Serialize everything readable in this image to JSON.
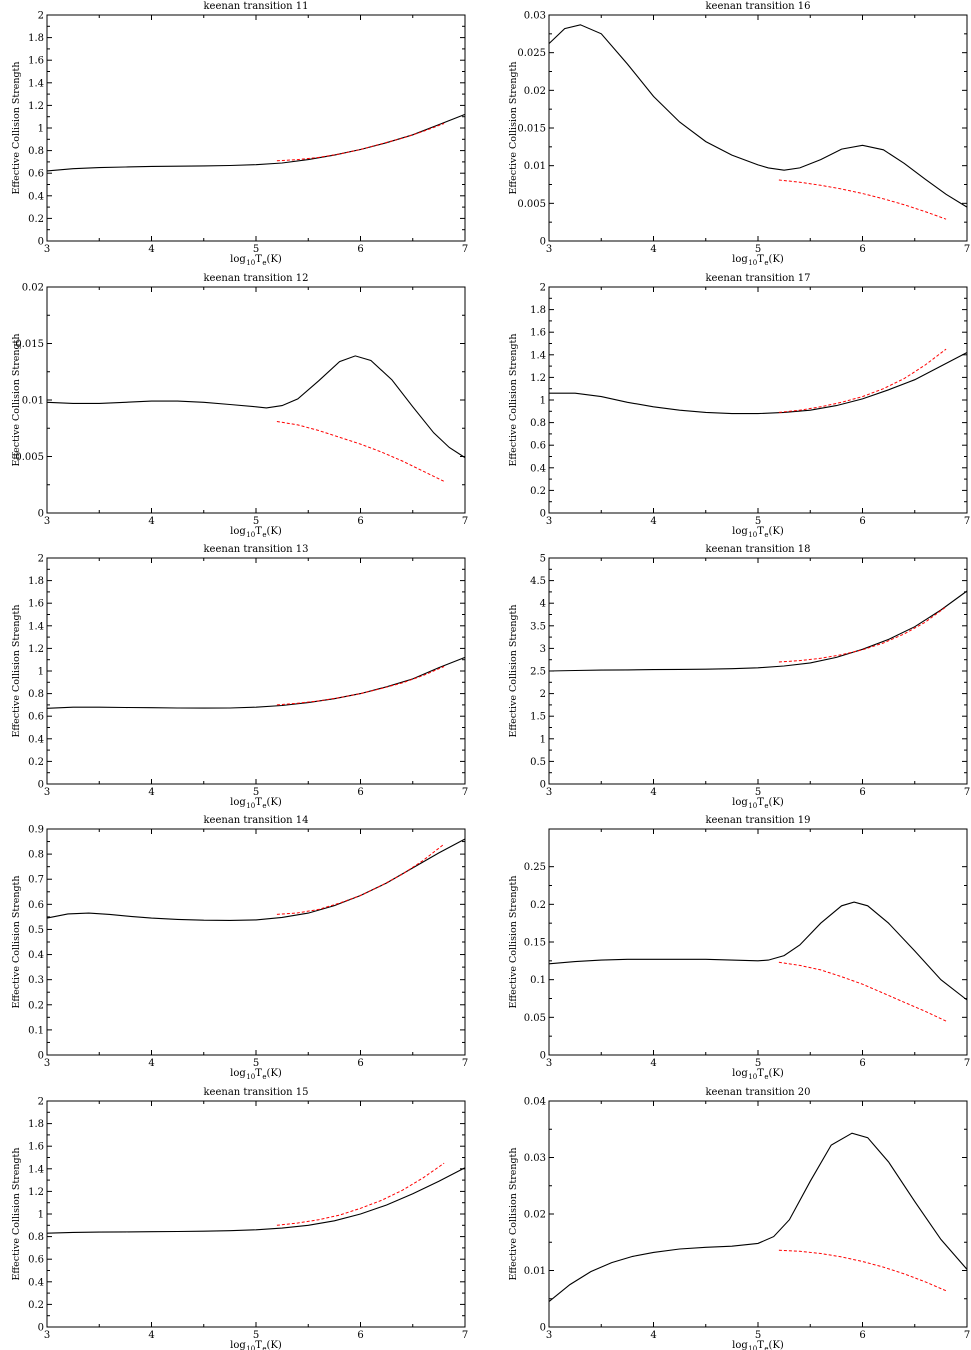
{
  "colors": {
    "calculated": "#000000",
    "reference": "#ff0000",
    "background": "#ffffff"
  },
  "chart_data": [
    {
      "type": "line",
      "title": "keenan transition 11",
      "xlabel": {
        "base": "log",
        "sub": "10",
        "T": "T",
        "esub": "e",
        "unit": "(K)"
      },
      "ylabel": "Effective Collision Strength",
      "xlim": [
        3,
        7
      ],
      "ylim": [
        0,
        2
      ],
      "xticks": [
        "3",
        "4",
        "5",
        "6",
        "7"
      ],
      "yticks": [
        "0",
        "0.2",
        "0.4",
        "0.6",
        "0.8",
        "1",
        "1.2",
        "1.4",
        "1.6",
        "1.8",
        "2"
      ],
      "series": [
        {
          "style": "solid",
          "x": [
            3,
            3.25,
            3.5,
            3.75,
            4,
            4.25,
            4.5,
            4.75,
            5,
            5.25,
            5.5,
            5.75,
            6,
            6.25,
            6.5,
            6.75,
            7
          ],
          "y": [
            0.62,
            0.64,
            0.65,
            0.655,
            0.66,
            0.662,
            0.665,
            0.668,
            0.675,
            0.69,
            0.72,
            0.76,
            0.81,
            0.87,
            0.94,
            1.03,
            1.12
          ]
        },
        {
          "style": "dashed",
          "x": [
            5.2,
            5.4,
            5.6,
            5.8,
            6,
            6.2,
            6.4,
            6.6,
            6.8
          ],
          "y": [
            0.71,
            0.72,
            0.74,
            0.77,
            0.81,
            0.86,
            0.91,
            0.97,
            1.04
          ]
        }
      ]
    },
    {
      "type": "line",
      "title": "keenan transition 16",
      "xlabel": {
        "base": "log",
        "sub": "10",
        "T": "T",
        "esub": "e",
        "unit": "(K)"
      },
      "ylabel": "Effective Collision Strength",
      "xlim": [
        3,
        7
      ],
      "ylim": [
        0,
        0.03
      ],
      "xticks": [
        "3",
        "4",
        "5",
        "6",
        "7"
      ],
      "yticks": [
        "0",
        "0.005",
        "0.01",
        "0.015",
        "0.02",
        "0.025",
        "0.03"
      ],
      "series": [
        {
          "style": "solid",
          "x": [
            3,
            3.15,
            3.3,
            3.5,
            3.75,
            4,
            4.25,
            4.5,
            4.75,
            5,
            5.1,
            5.25,
            5.4,
            5.6,
            5.8,
            6,
            6.2,
            6.4,
            6.6,
            6.8,
            7
          ],
          "y": [
            0.0262,
            0.0282,
            0.0287,
            0.0275,
            0.0235,
            0.0192,
            0.0158,
            0.0132,
            0.0114,
            0.0101,
            0.0097,
            0.0094,
            0.0097,
            0.0108,
            0.0122,
            0.0127,
            0.0121,
            0.0103,
            0.0082,
            0.0062,
            0.0045
          ]
        },
        {
          "style": "dashed",
          "x": [
            5.2,
            5.4,
            5.6,
            5.8,
            6,
            6.2,
            6.4,
            6.6,
            6.8
          ],
          "y": [
            0.0081,
            0.0078,
            0.0074,
            0.0069,
            0.0063,
            0.0056,
            0.0048,
            0.0039,
            0.0029
          ]
        }
      ]
    },
    {
      "type": "line",
      "title": "keenan transition 12",
      "xlabel": {
        "base": "log",
        "sub": "10",
        "T": "T",
        "esub": "e",
        "unit": "(K)"
      },
      "ylabel": "Effective Collision Strength",
      "xlim": [
        3,
        7
      ],
      "ylim": [
        0,
        0.02
      ],
      "xticks": [
        "3",
        "4",
        "5",
        "6",
        "7"
      ],
      "yticks": [
        "0",
        "0.005",
        "0.01",
        "0.015",
        "0.02"
      ],
      "series": [
        {
          "style": "solid",
          "x": [
            3,
            3.25,
            3.5,
            3.75,
            4,
            4.25,
            4.5,
            4.75,
            5,
            5.1,
            5.25,
            5.4,
            5.6,
            5.8,
            5.95,
            6.1,
            6.3,
            6.5,
            6.7,
            6.85,
            7
          ],
          "y": [
            0.0098,
            0.0097,
            0.0097,
            0.0098,
            0.0099,
            0.0099,
            0.0098,
            0.0096,
            0.0094,
            0.0093,
            0.0095,
            0.0101,
            0.0117,
            0.0134,
            0.0139,
            0.0135,
            0.0118,
            0.0094,
            0.0071,
            0.0058,
            0.0049
          ]
        },
        {
          "style": "dashed",
          "x": [
            5.2,
            5.4,
            5.6,
            5.8,
            6,
            6.2,
            6.4,
            6.6,
            6.8
          ],
          "y": [
            0.0081,
            0.0078,
            0.0073,
            0.0067,
            0.0061,
            0.0054,
            0.0046,
            0.0037,
            0.0028
          ]
        }
      ]
    },
    {
      "type": "line",
      "title": "keenan transition 17",
      "xlabel": {
        "base": "log",
        "sub": "10",
        "T": "T",
        "esub": "e",
        "unit": "(K)"
      },
      "ylabel": "Effective Collision Strength",
      "xlim": [
        3,
        7
      ],
      "ylim": [
        0,
        2
      ],
      "xticks": [
        "3",
        "4",
        "5",
        "6",
        "7"
      ],
      "yticks": [
        "0",
        "0.2",
        "0.4",
        "0.6",
        "0.8",
        "1",
        "1.2",
        "1.4",
        "1.6",
        "1.8",
        "2"
      ],
      "series": [
        {
          "style": "solid",
          "x": [
            3,
            3.25,
            3.5,
            3.75,
            4,
            4.25,
            4.5,
            4.75,
            5,
            5.25,
            5.5,
            5.75,
            6,
            6.25,
            6.5,
            6.75,
            7
          ],
          "y": [
            1.06,
            1.06,
            1.03,
            0.98,
            0.94,
            0.91,
            0.89,
            0.88,
            0.88,
            0.89,
            0.91,
            0.95,
            1.01,
            1.09,
            1.18,
            1.3,
            1.42
          ]
        },
        {
          "style": "dashed",
          "x": [
            5.2,
            5.4,
            5.6,
            5.8,
            6,
            6.2,
            6.4,
            6.6,
            6.8
          ],
          "y": [
            0.89,
            0.91,
            0.94,
            0.98,
            1.03,
            1.1,
            1.19,
            1.31,
            1.45
          ]
        }
      ]
    },
    {
      "type": "line",
      "title": "keenan transition 13",
      "xlabel": {
        "base": "log",
        "sub": "10",
        "T": "T",
        "esub": "e",
        "unit": "(K)"
      },
      "ylabel": "Effective Collision Strength",
      "xlim": [
        3,
        7
      ],
      "ylim": [
        0,
        2
      ],
      "xticks": [
        "3",
        "4",
        "5",
        "6",
        "7"
      ],
      "yticks": [
        "0",
        "0.2",
        "0.4",
        "0.6",
        "0.8",
        "1",
        "1.2",
        "1.4",
        "1.6",
        "1.8",
        "2"
      ],
      "series": [
        {
          "style": "solid",
          "x": [
            3,
            3.25,
            3.5,
            3.75,
            4,
            4.25,
            4.5,
            4.75,
            5,
            5.25,
            5.5,
            5.75,
            6,
            6.25,
            6.5,
            6.75,
            7
          ],
          "y": [
            0.67,
            0.68,
            0.68,
            0.677,
            0.675,
            0.673,
            0.672,
            0.673,
            0.68,
            0.695,
            0.72,
            0.755,
            0.8,
            0.86,
            0.93,
            1.03,
            1.12
          ]
        },
        {
          "style": "dashed",
          "x": [
            5.2,
            5.4,
            5.6,
            5.8,
            6,
            6.2,
            6.4,
            6.6,
            6.8
          ],
          "y": [
            0.7,
            0.715,
            0.735,
            0.765,
            0.8,
            0.845,
            0.895,
            0.96,
            1.04
          ]
        }
      ]
    },
    {
      "type": "line",
      "title": "keenan transition 18",
      "xlabel": {
        "base": "log",
        "sub": "10",
        "T": "T",
        "esub": "e",
        "unit": "(K)"
      },
      "ylabel": "Effective Collision Strength",
      "xlim": [
        3,
        7
      ],
      "ylim": [
        0,
        5
      ],
      "xticks": [
        "3",
        "4",
        "5",
        "6",
        "7"
      ],
      "yticks": [
        "0",
        "0.5",
        "1",
        "1.5",
        "2",
        "2.5",
        "3",
        "3.5",
        "4",
        "4.5",
        "5"
      ],
      "series": [
        {
          "style": "solid",
          "x": [
            3,
            3.25,
            3.5,
            3.75,
            4,
            4.25,
            4.5,
            4.75,
            5,
            5.25,
            5.5,
            5.75,
            6,
            6.25,
            6.5,
            6.75,
            7
          ],
          "y": [
            2.5,
            2.51,
            2.52,
            2.525,
            2.53,
            2.535,
            2.54,
            2.55,
            2.57,
            2.61,
            2.68,
            2.8,
            2.98,
            3.2,
            3.48,
            3.85,
            4.27
          ]
        },
        {
          "style": "dashed",
          "x": [
            5.2,
            5.4,
            5.6,
            5.8,
            6,
            6.2,
            6.4,
            6.6,
            6.8
          ],
          "y": [
            2.7,
            2.73,
            2.78,
            2.86,
            2.97,
            3.12,
            3.32,
            3.58,
            3.92
          ]
        }
      ]
    },
    {
      "type": "line",
      "title": "keenan transition 14",
      "xlabel": {
        "base": "log",
        "sub": "10",
        "T": "T",
        "esub": "e",
        "unit": "(K)"
      },
      "ylabel": "Effective Collision Strength",
      "xlim": [
        3,
        7
      ],
      "ylim": [
        0,
        0.9
      ],
      "xticks": [
        "3",
        "4",
        "5",
        "6",
        "7"
      ],
      "yticks": [
        "0",
        "0.1",
        "0.2",
        "0.3",
        "0.4",
        "0.5",
        "0.6",
        "0.7",
        "0.8",
        "0.9"
      ],
      "series": [
        {
          "style": "solid",
          "x": [
            3,
            3.2,
            3.4,
            3.6,
            3.8,
            4,
            4.25,
            4.5,
            4.75,
            5,
            5.25,
            5.5,
            5.75,
            6,
            6.25,
            6.5,
            6.75,
            7
          ],
          "y": [
            0.545,
            0.562,
            0.565,
            0.56,
            0.552,
            0.545,
            0.54,
            0.537,
            0.536,
            0.538,
            0.548,
            0.565,
            0.595,
            0.635,
            0.685,
            0.745,
            0.805,
            0.86
          ]
        },
        {
          "style": "dashed",
          "x": [
            5.2,
            5.4,
            5.6,
            5.8,
            6,
            6.2,
            6.4,
            6.6,
            6.8
          ],
          "y": [
            0.56,
            0.566,
            0.58,
            0.605,
            0.635,
            0.675,
            0.72,
            0.775,
            0.84
          ]
        }
      ]
    },
    {
      "type": "line",
      "title": "keenan transition 19",
      "xlabel": {
        "base": "log",
        "sub": "10",
        "T": "T",
        "esub": "e",
        "unit": "(K)"
      },
      "ylabel": "Effective Collision Strength",
      "xlim": [
        3,
        7
      ],
      "ylim": [
        0,
        0.3
      ],
      "xticks": [
        "3",
        "4",
        "5",
        "6",
        "7"
      ],
      "yticks": [
        "0",
        "0.05",
        "0.1",
        "0.15",
        "0.2",
        "0.25"
      ],
      "series": [
        {
          "style": "solid",
          "x": [
            3,
            3.25,
            3.5,
            3.75,
            4,
            4.25,
            4.5,
            4.75,
            5,
            5.1,
            5.25,
            5.4,
            5.6,
            5.8,
            5.92,
            6.05,
            6.25,
            6.5,
            6.75,
            7
          ],
          "y": [
            0.121,
            0.124,
            0.126,
            0.127,
            0.127,
            0.127,
            0.127,
            0.126,
            0.125,
            0.126,
            0.132,
            0.146,
            0.175,
            0.198,
            0.203,
            0.198,
            0.175,
            0.138,
            0.1,
            0.073
          ]
        },
        {
          "style": "dashed",
          "x": [
            5.2,
            5.4,
            5.6,
            5.8,
            6,
            6.2,
            6.4,
            6.6,
            6.8
          ],
          "y": [
            0.123,
            0.119,
            0.113,
            0.104,
            0.094,
            0.082,
            0.07,
            0.058,
            0.045
          ]
        }
      ]
    },
    {
      "type": "line",
      "title": "keenan transition 15",
      "xlabel": {
        "base": "log",
        "sub": "10",
        "T": "T",
        "esub": "e",
        "unit": "(K)"
      },
      "ylabel": "Effective Collision Strength",
      "xlim": [
        3,
        7
      ],
      "ylim": [
        0,
        2
      ],
      "xticks": [
        "3",
        "4",
        "5",
        "6",
        "7"
      ],
      "yticks": [
        "0",
        "0.2",
        "0.4",
        "0.6",
        "0.8",
        "1",
        "1.2",
        "1.4",
        "1.6",
        "1.8",
        "2"
      ],
      "series": [
        {
          "style": "solid",
          "x": [
            3,
            3.25,
            3.5,
            3.75,
            4,
            4.25,
            4.5,
            4.75,
            5,
            5.25,
            5.5,
            5.75,
            6,
            6.25,
            6.5,
            6.75,
            7
          ],
          "y": [
            0.83,
            0.837,
            0.84,
            0.842,
            0.843,
            0.845,
            0.848,
            0.852,
            0.86,
            0.875,
            0.9,
            0.94,
            1.0,
            1.08,
            1.18,
            1.29,
            1.41
          ]
        },
        {
          "style": "dashed",
          "x": [
            5.2,
            5.4,
            5.6,
            5.8,
            6,
            6.2,
            6.4,
            6.6,
            6.8
          ],
          "y": [
            0.9,
            0.92,
            0.95,
            0.99,
            1.05,
            1.12,
            1.21,
            1.32,
            1.45
          ]
        }
      ]
    },
    {
      "type": "line",
      "title": "keenan transition 20",
      "xlabel": {
        "base": "log",
        "sub": "10",
        "T": "T",
        "esub": "e",
        "unit": "(K)"
      },
      "ylabel": "Effective Collision Strength",
      "xlim": [
        3,
        7
      ],
      "ylim": [
        0,
        0.04
      ],
      "xticks": [
        "3",
        "4",
        "5",
        "6",
        "7"
      ],
      "yticks": [
        "0",
        "0.01",
        "0.02",
        "0.03",
        "0.04"
      ],
      "series": [
        {
          "style": "solid",
          "x": [
            3,
            3.2,
            3.4,
            3.6,
            3.8,
            4,
            4.25,
            4.5,
            4.75,
            5,
            5.15,
            5.3,
            5.5,
            5.7,
            5.9,
            6.05,
            6.25,
            6.5,
            6.75,
            7
          ],
          "y": [
            0.0045,
            0.0075,
            0.0098,
            0.0114,
            0.0125,
            0.0132,
            0.0138,
            0.0141,
            0.0143,
            0.0148,
            0.016,
            0.019,
            0.0258,
            0.0322,
            0.0343,
            0.0335,
            0.0292,
            0.0222,
            0.0155,
            0.0102
          ]
        },
        {
          "style": "dashed",
          "x": [
            5.2,
            5.4,
            5.6,
            5.8,
            6,
            6.2,
            6.4,
            6.6,
            6.8
          ],
          "y": [
            0.0136,
            0.0134,
            0.013,
            0.0124,
            0.0116,
            0.0106,
            0.0094,
            0.008,
            0.0064
          ]
        }
      ]
    }
  ]
}
